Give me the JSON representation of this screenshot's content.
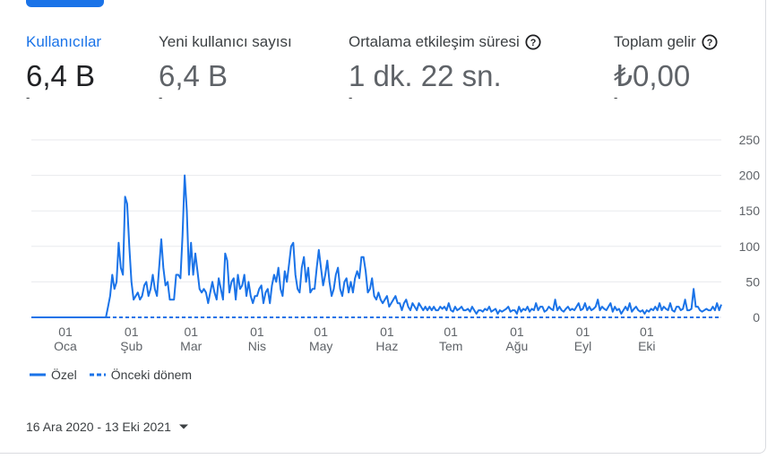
{
  "metrics": [
    {
      "label": "Kullanıcılar",
      "value": "6,4 B",
      "change": "-",
      "help": false,
      "active": true
    },
    {
      "label": "Yeni kullanıcı sayısı",
      "value": "6,4 B",
      "change": "-",
      "help": false,
      "active": false
    },
    {
      "label": "Ortalama etkileşim süresi",
      "value": "1 dk. 22 sn.",
      "change": "-",
      "help": true,
      "active": false
    },
    {
      "label": "Toplam gelir",
      "value": "₺0,00",
      "change": "-",
      "help": true,
      "active": false
    }
  ],
  "legend": {
    "current": "Özel",
    "previous": "Önceki dönem"
  },
  "date_range": "16 Ara 2020 - 13 Eki 2021",
  "colors": {
    "accent": "#1a73e8",
    "grid": "#e8eaed",
    "axis_text": "#5f6368"
  },
  "chart_data": {
    "type": "line",
    "title": "",
    "xlabel": "",
    "ylabel": "",
    "ylim": [
      0,
      250
    ],
    "y_ticks": [
      0,
      50,
      100,
      150,
      200,
      250
    ],
    "x_ticks": [
      {
        "top": "01",
        "bottom": "Oca",
        "day": 16
      },
      {
        "top": "01",
        "bottom": "Şub",
        "day": 47
      },
      {
        "top": "01",
        "bottom": "Mar",
        "day": 75
      },
      {
        "top": "01",
        "bottom": "Nis",
        "day": 106
      },
      {
        "top": "01",
        "bottom": "May",
        "day": 136
      },
      {
        "top": "01",
        "bottom": "Haz",
        "day": 167
      },
      {
        "top": "01",
        "bottom": "Tem",
        "day": 197
      },
      {
        "top": "01",
        "bottom": "Ağu",
        "day": 228
      },
      {
        "top": "01",
        "bottom": "Eyl",
        "day": 259
      },
      {
        "top": "01",
        "bottom": "Eki",
        "day": 289
      }
    ],
    "series": [
      {
        "name": "Özel",
        "style": "solid",
        "values": [
          0,
          0,
          0,
          0,
          0,
          0,
          0,
          0,
          0,
          0,
          0,
          0,
          0,
          0,
          0,
          0,
          0,
          0,
          0,
          0,
          0,
          0,
          0,
          0,
          0,
          0,
          0,
          0,
          0,
          0,
          0,
          0,
          0,
          0,
          0,
          0,
          15,
          30,
          60,
          40,
          50,
          105,
          70,
          60,
          170,
          160,
          100,
          50,
          25,
          30,
          35,
          25,
          30,
          45,
          50,
          30,
          40,
          60,
          40,
          30,
          70,
          110,
          70,
          45,
          50,
          25,
          25,
          25,
          60,
          60,
          55,
          115,
          200,
          150,
          60,
          105,
          60,
          90,
          65,
          40,
          35,
          40,
          35,
          20,
          35,
          50,
          35,
          25,
          55,
          40,
          25,
          90,
          80,
          35,
          50,
          55,
          25,
          60,
          40,
          45,
          60,
          30,
          50,
          30,
          20,
          30,
          30,
          40,
          45,
          20,
          35,
          40,
          20,
          45,
          60,
          50,
          70,
          40,
          30,
          65,
          50,
          75,
          100,
          105,
          60,
          40,
          35,
          70,
          85,
          50,
          70,
          35,
          40,
          40,
          70,
          95,
          70,
          45,
          60,
          80,
          50,
          30,
          40,
          60,
          70,
          40,
          30,
          50,
          55,
          35,
          50,
          35,
          55,
          65,
          55,
          85,
          85,
          65,
          35,
          40,
          55,
          30,
          25,
          35,
          25,
          20,
          25,
          30,
          15,
          20,
          25,
          30,
          20,
          20,
          10,
          20,
          25,
          15,
          10,
          20,
          15,
          10,
          20,
          15,
          10,
          15,
          10,
          15,
          10,
          15,
          10,
          10,
          15,
          12,
          15,
          10,
          20,
          10,
          8,
          15,
          10,
          12,
          15,
          10,
          10,
          12,
          8,
          15,
          10,
          5,
          10,
          10,
          8,
          12,
          10,
          15,
          8,
          10,
          12,
          5,
          10,
          8,
          10,
          12,
          15,
          8,
          10,
          10,
          5,
          15,
          8,
          12,
          10,
          15,
          8,
          12,
          10,
          20,
          10,
          15,
          15,
          8,
          10,
          15,
          12,
          10,
          25,
          10,
          15,
          10,
          8,
          12,
          15,
          10,
          12,
          10,
          15,
          20,
          10,
          12,
          20,
          10,
          15,
          10,
          12,
          15,
          25,
          10,
          15,
          12,
          10,
          15,
          20,
          8,
          15,
          10,
          12,
          5,
          10,
          15,
          10,
          20,
          8,
          12,
          15,
          10,
          8,
          10,
          5,
          10,
          8,
          12,
          10,
          15,
          10,
          20,
          10,
          15,
          12,
          10,
          20,
          10,
          8,
          15,
          15,
          10,
          12,
          25,
          10,
          10,
          12,
          40,
          15,
          15,
          10,
          8,
          10,
          12,
          10,
          10,
          15,
          10,
          20,
          10,
          18
        ]
      },
      {
        "name": "Önceki dönem",
        "style": "dashed",
        "values": []
      }
    ]
  }
}
